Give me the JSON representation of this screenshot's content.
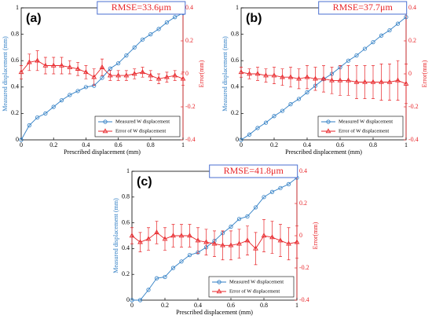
{
  "chart_data": [
    {
      "type": "line",
      "panel_label": "(a)",
      "annotation": "RMSE=33.6μm",
      "xlabel": "Prescribed displacement (mm)",
      "ylabel": "Measured displacement (mm)",
      "y2label": "Error(mm)",
      "x": [
        0,
        0.05,
        0.1,
        0.15,
        0.2,
        0.25,
        0.3,
        0.35,
        0.4,
        0.45,
        0.5,
        0.55,
        0.6,
        0.65,
        0.7,
        0.75,
        0.8,
        0.85,
        0.9,
        0.95,
        1
      ],
      "series": [
        {
          "name": "Measured W displacement",
          "color": "#2f7ec4",
          "marker": "circle",
          "values": [
            0,
            0.11,
            0.17,
            0.2,
            0.25,
            0.3,
            0.34,
            0.37,
            0.4,
            0.41,
            0.47,
            0.54,
            0.58,
            0.64,
            0.7,
            0.76,
            0.8,
            0.84,
            0.89,
            0.93,
            0.96
          ]
        },
        {
          "name": "Error of W displacement",
          "color": "#e8262a",
          "marker": "triangle",
          "axis": "y2",
          "values": [
            0.01,
            0.07,
            0.08,
            0.05,
            0.05,
            0.05,
            0.04,
            0.03,
            0.01,
            -0.02,
            0.04,
            -0.01,
            -0.01,
            -0.01,
            0,
            0.01,
            -0.01,
            -0.03,
            -0.02,
            -0.01,
            -0.03
          ],
          "errors": [
            0.04,
            0.05,
            0.06,
            0.05,
            0.05,
            0.05,
            0.04,
            0.04,
            0.04,
            0.05,
            0.05,
            0.03,
            0.03,
            0.03,
            0.03,
            0.03,
            0.03,
            0.03,
            0.03,
            0.03,
            0.04
          ]
        }
      ],
      "xlim": [
        0,
        1
      ],
      "ylim": [
        0,
        1
      ],
      "y2lim": [
        -0.4,
        0.4
      ],
      "xticks": [
        0,
        0.2,
        0.4,
        0.6,
        0.8,
        1
      ],
      "yticks": [
        0,
        0.2,
        0.4,
        0.6,
        0.8,
        1
      ],
      "y2ticks": [
        -0.4,
        -0.2,
        0,
        0.2,
        0.4
      ],
      "legend": "lower right",
      "grid": false
    },
    {
      "type": "line",
      "panel_label": "(b)",
      "annotation": "RMSE=37.7μm",
      "xlabel": "Prescribed displacement (mm)",
      "ylabel": "Measured displacement (mm)",
      "y2label": "Error(mm)",
      "x": [
        0,
        0.05,
        0.1,
        0.15,
        0.2,
        0.25,
        0.3,
        0.35,
        0.4,
        0.45,
        0.5,
        0.55,
        0.6,
        0.65,
        0.7,
        0.75,
        0.8,
        0.85,
        0.9,
        0.95,
        1
      ],
      "series": [
        {
          "name": "Measured W displacement",
          "color": "#2f7ec4",
          "marker": "circle",
          "values": [
            0,
            0.04,
            0.09,
            0.13,
            0.18,
            0.22,
            0.27,
            0.31,
            0.36,
            0.41,
            0.46,
            0.5,
            0.55,
            0.6,
            0.64,
            0.69,
            0.74,
            0.79,
            0.83,
            0.88,
            0.93
          ]
        },
        {
          "name": "Error of W displacement",
          "color": "#e8262a",
          "marker": "triangle",
          "axis": "y2",
          "values": [
            0.01,
            0,
            0,
            -0.01,
            -0.01,
            -0.02,
            -0.02,
            -0.03,
            -0.02,
            -0.03,
            -0.03,
            -0.04,
            -0.04,
            -0.04,
            -0.05,
            -0.05,
            -0.05,
            -0.05,
            -0.05,
            -0.04,
            -0.06
          ],
          "errors": [
            0.03,
            0.03,
            0.04,
            0.04,
            0.05,
            0.05,
            0.06,
            0.06,
            0.07,
            0.07,
            0.08,
            0.08,
            0.09,
            0.09,
            0.1,
            0.1,
            0.1,
            0.11,
            0.11,
            0.12,
            0.12
          ]
        }
      ],
      "xlim": [
        0,
        1
      ],
      "ylim": [
        0,
        1
      ],
      "y2lim": [
        -0.4,
        0.4
      ],
      "xticks": [
        0,
        0.2,
        0.4,
        0.6,
        0.8,
        1
      ],
      "yticks": [
        0,
        0.2,
        0.4,
        0.6,
        0.8,
        1
      ],
      "y2ticks": [
        -0.4,
        -0.2,
        0,
        0.2,
        0.4
      ],
      "legend": "lower right",
      "grid": false
    },
    {
      "type": "line",
      "panel_label": "(c)",
      "annotation": "RMSE=41.8μm",
      "xlabel": "Prescribed displacement (mm)",
      "ylabel": "Measured displacement (mm)",
      "y2label": "Error(mm)",
      "x": [
        0,
        0.05,
        0.1,
        0.15,
        0.2,
        0.25,
        0.3,
        0.35,
        0.4,
        0.45,
        0.5,
        0.55,
        0.6,
        0.65,
        0.7,
        0.75,
        0.8,
        0.85,
        0.9,
        0.95,
        1
      ],
      "series": [
        {
          "name": "Measured W displacement",
          "color": "#2f7ec4",
          "marker": "circle",
          "values": [
            0,
            0,
            0.08,
            0.17,
            0.18,
            0.25,
            0.3,
            0.35,
            0.37,
            0.41,
            0.46,
            0.52,
            0.57,
            0.63,
            0.65,
            0.72,
            0.8,
            0.84,
            0.87,
            0.9,
            0.95
          ]
        },
        {
          "name": "Error of W displacement",
          "color": "#e8262a",
          "marker": "triangle",
          "axis": "y2",
          "values": [
            0,
            -0.04,
            -0.02,
            0.02,
            -0.02,
            0,
            0,
            0,
            -0.03,
            -0.04,
            -0.05,
            -0.06,
            -0.06,
            -0.05,
            -0.03,
            -0.08,
            0,
            -0.01,
            -0.03,
            -0.05,
            -0.04
          ],
          "errors": [
            0.05,
            0.06,
            0.07,
            0.07,
            0.07,
            0.07,
            0.07,
            0.07,
            0.08,
            0.08,
            0.08,
            0.09,
            0.09,
            0.09,
            0.09,
            0.1,
            0.1,
            0.1,
            0.1,
            0.1,
            0.1
          ]
        }
      ],
      "xlim": [
        0,
        1
      ],
      "ylim": [
        0,
        1
      ],
      "y2lim": [
        -0.4,
        0.4
      ],
      "xticks": [
        0,
        0.2,
        0.4,
        0.6,
        0.8,
        1
      ],
      "yticks": [
        0,
        0.2,
        0.4,
        0.6,
        0.8,
        1
      ],
      "y2ticks": [
        -0.4,
        -0.2,
        0,
        0.2,
        0.4
      ],
      "legend": "lower right",
      "grid": false
    }
  ]
}
